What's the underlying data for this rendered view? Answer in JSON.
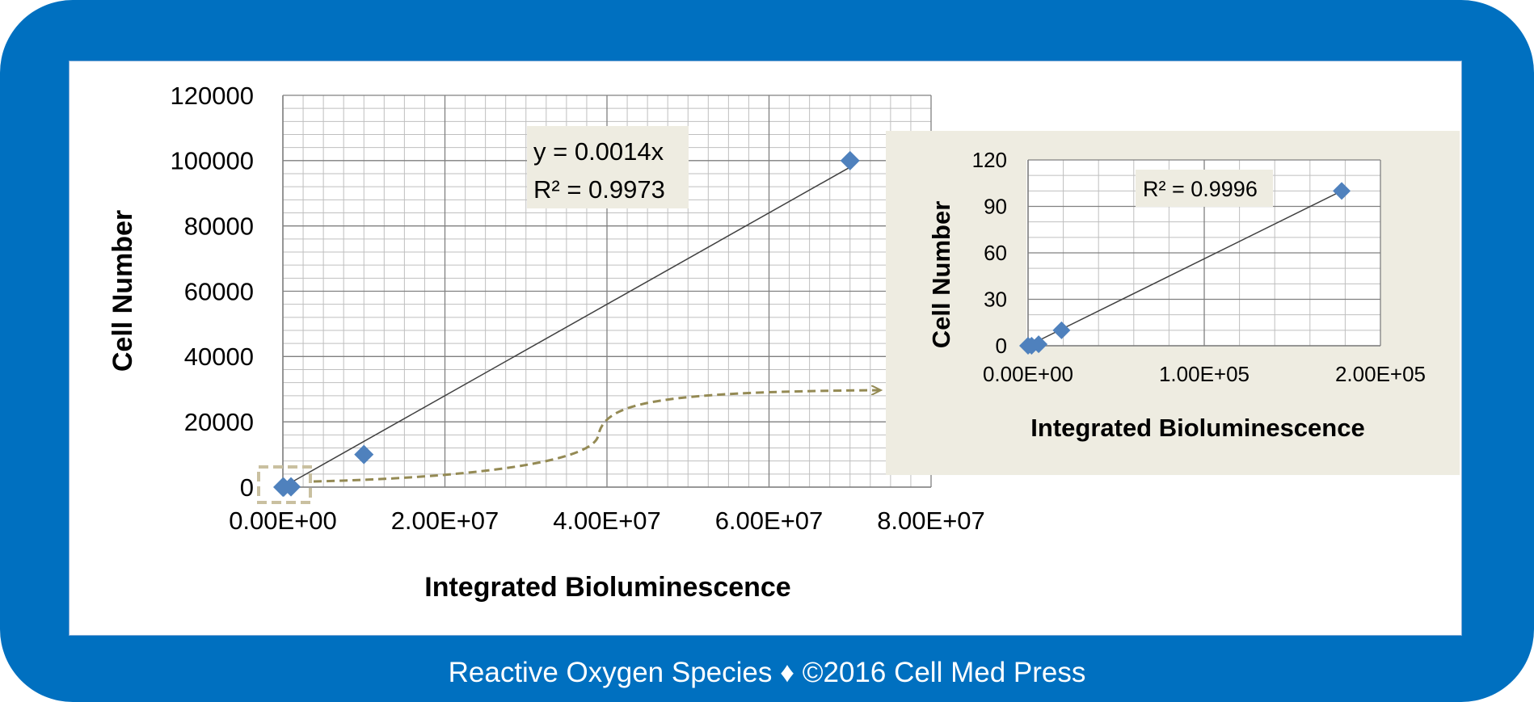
{
  "colors": {
    "frame": "#0070c0",
    "marker": "#4f81bd",
    "inset_bg": "#eeece1",
    "annotation": "#948a54"
  },
  "chart_data": [
    {
      "type": "scatter",
      "title": "",
      "xlabel": "Integrated Bioluminescence",
      "ylabel": "Cell Number",
      "xlim": [
        0,
        80000000
      ],
      "ylim": [
        0,
        120000
      ],
      "x_ticks": [
        "0.00E+00",
        "2.00E+07",
        "4.00E+07",
        "6.00E+07",
        "8.00E+07"
      ],
      "y_ticks": [
        "0",
        "20000",
        "40000",
        "60000",
        "80000",
        "100000",
        "120000"
      ],
      "points": [
        {
          "x": 0,
          "y": 0
        },
        {
          "x": 100000,
          "y": 10
        },
        {
          "x": 1000000,
          "y": 100
        },
        {
          "x": 10000000,
          "y": 10000
        },
        {
          "x": 70000000,
          "y": 100000
        }
      ],
      "trendline": {
        "type": "linear",
        "slope": 0.0014,
        "x_range": [
          0,
          70000000
        ]
      },
      "equation_label": "y = 0.0014x",
      "r2_label": "R² = 0.9973",
      "grid": true
    },
    {
      "type": "scatter",
      "title": "",
      "xlabel": "Integrated Bioluminescence",
      "ylabel": "Cell Number",
      "xlim": [
        0,
        200000
      ],
      "ylim": [
        0,
        120
      ],
      "x_ticks": [
        "0.00E+00",
        "1.00E+05",
        "2.00E+05"
      ],
      "y_ticks": [
        "0",
        "30",
        "60",
        "90",
        "120"
      ],
      "points": [
        {
          "x": 0,
          "y": 0
        },
        {
          "x": 2000,
          "y": 0
        },
        {
          "x": 6000,
          "y": 1
        },
        {
          "x": 19000,
          "y": 10
        },
        {
          "x": 178000,
          "y": 100
        }
      ],
      "trendline": {
        "type": "linear",
        "x_range": [
          0,
          178000
        ],
        "y_range": [
          0,
          100
        ]
      },
      "r2_label": "R² = 0.9996",
      "grid": true
    }
  ],
  "footer": "Reactive Oxygen Species ♦ ©2016 Cell Med Press"
}
